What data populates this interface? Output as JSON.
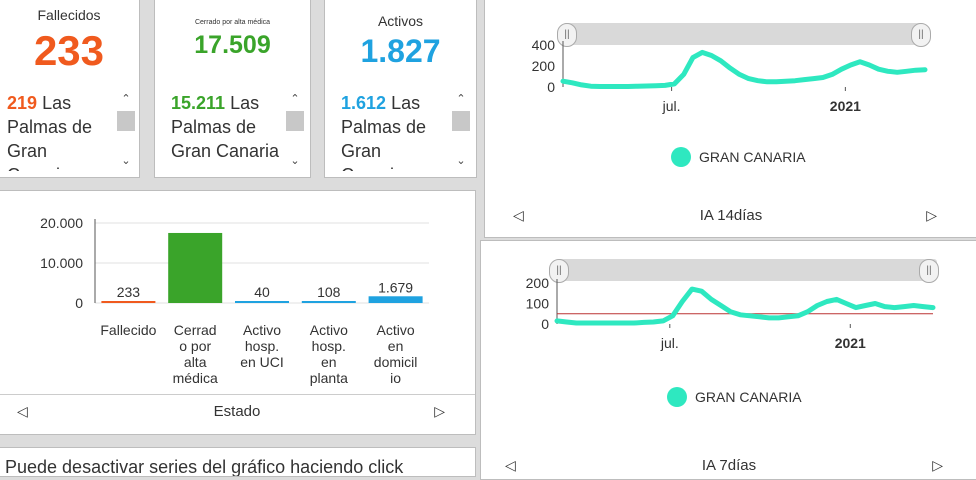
{
  "kpis": [
    {
      "title": "Fallecidos",
      "value": "233",
      "color": "#f05a1e",
      "sub_num": "219",
      "sub_text": "Las Palmas de Gran Canaria"
    },
    {
      "title": "Cerrado por alta médica",
      "value": "17.509",
      "color": "#3aa42a",
      "sub_num": "15.211",
      "sub_text": "Las Palmas de Gran Canaria"
    },
    {
      "title": "Activos",
      "value": "1.827",
      "color": "#1fa2e0",
      "sub_num": "1.612",
      "sub_text": "Las Palmas de Gran Canaria"
    }
  ],
  "estado_nav": {
    "label": "Estado",
    "prev_icon": "◁",
    "next_icon": "▷"
  },
  "ia14_nav": {
    "label": "IA 14días",
    "prev_icon": "◁",
    "next_icon": "▷"
  },
  "ia7_nav": {
    "label": "IA 7días",
    "prev_icon": "◁",
    "next_icon": "▷"
  },
  "footer_text": "Puede desactivar series del gráfico haciendo click",
  "chart_data": [
    {
      "type": "bar",
      "categories": [
        "Fallecido",
        "Cerrad o por alta médica",
        "Activo hosp. en UCI",
        "Activo hosp. en planta",
        "Activo en domicilio"
      ],
      "category_lines": [
        [
          "Fallecido"
        ],
        [
          "Cerrad",
          "o por",
          "alta",
          "médica"
        ],
        [
          "Activo",
          "hosp.",
          "en UCI"
        ],
        [
          "Activo",
          "hosp.",
          "en",
          "planta"
        ],
        [
          "Activo",
          "en",
          "domicil",
          "io"
        ]
      ],
      "values": [
        233,
        17509,
        40,
        108,
        1679
      ],
      "data_labels": [
        "233",
        "",
        "40",
        "108",
        "1.679"
      ],
      "colors": [
        "#f05a1e",
        "#3aa42a",
        "#1fa2e0",
        "#1fa2e0",
        "#1fa2e0"
      ],
      "ylim": [
        0,
        20000
      ],
      "yticks": [
        "0",
        "10.000",
        "20.000"
      ],
      "xlabel": "Estado"
    },
    {
      "type": "line",
      "series": [
        {
          "name": "GRAN CANARIA",
          "color": "#2ee8c0",
          "values": [
            55,
            40,
            20,
            8,
            5,
            5,
            5,
            5,
            8,
            10,
            12,
            15,
            30,
            120,
            280,
            330,
            300,
            250,
            180,
            120,
            80,
            60,
            50,
            50,
            55,
            60,
            70,
            80,
            90,
            120,
            170,
            210,
            240,
            210,
            170,
            150,
            140,
            150,
            160,
            165
          ]
        }
      ],
      "ylim": [
        0,
        400
      ],
      "yticks": [
        "0",
        "200",
        "400"
      ],
      "xticks": [
        "jul.",
        "2021"
      ],
      "legend": "bottom-center"
    },
    {
      "type": "line",
      "series": [
        {
          "name": "GRAN CANARIA",
          "color": "#2ee8c0",
          "values": [
            15,
            10,
            5,
            5,
            5,
            5,
            5,
            5,
            5,
            8,
            10,
            15,
            40,
            110,
            170,
            160,
            120,
            90,
            60,
            45,
            40,
            35,
            30,
            30,
            35,
            40,
            60,
            90,
            110,
            120,
            100,
            80,
            90,
            100,
            85,
            80,
            85,
            90,
            85,
            80
          ]
        }
      ],
      "ylim": [
        0,
        200
      ],
      "yticks": [
        "0",
        "100",
        "200"
      ],
      "threshold": 50,
      "xticks": [
        "jul.",
        "2021"
      ],
      "legend": "bottom-center"
    }
  ]
}
